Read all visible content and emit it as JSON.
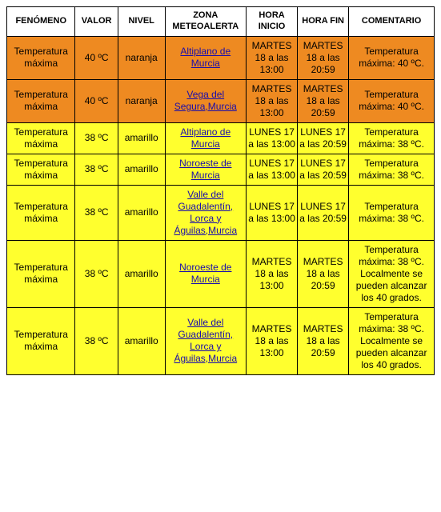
{
  "table": {
    "columns": [
      "FENÓMENO",
      "VALOR",
      "NIVEL",
      "ZONA METEOALERTA",
      "HORA INICIO",
      "HORA FIN",
      "COMENTARIO"
    ],
    "col_widths_pct": [
      16,
      10,
      11,
      19,
      12,
      12,
      20
    ],
    "header_bg": "#ffffff",
    "header_fontsize": 11,
    "cell_fontsize": 12,
    "border_color": "#000000",
    "link_color": "#1a0dab",
    "level_colors": {
      "naranja": "#ee8a21",
      "amarillo": "#ffff2e"
    },
    "rows": [
      {
        "fenomeno": "Temperatura máxima",
        "valor": "40 ºC",
        "nivel": "naranja",
        "zona": "Altiplano de Murcia",
        "inicio": "MARTES 18 a las 13:00",
        "fin": "MARTES 18 a las 20:59",
        "comentario": "Temperatura máxima: 40 ºC."
      },
      {
        "fenomeno": "Temperatura máxima",
        "valor": "40 ºC",
        "nivel": "naranja",
        "zona": "Vega del Segura,Murcia",
        "inicio": "MARTES 18 a las 13:00",
        "fin": "MARTES 18 a las 20:59",
        "comentario": "Temperatura máxima: 40 ºC."
      },
      {
        "fenomeno": "Temperatura máxima",
        "valor": "38 ºC",
        "nivel": "amarillo",
        "zona": "Altiplano de Murcia",
        "inicio": "LUNES 17 a las 13:00",
        "fin": "LUNES 17 a las 20:59",
        "comentario": "Temperatura máxima: 38 ºC."
      },
      {
        "fenomeno": "Temperatura máxima",
        "valor": "38 ºC",
        "nivel": "amarillo",
        "zona": "Noroeste de Murcia",
        "inicio": "LUNES 17 a las 13:00",
        "fin": "LUNES 17 a las 20:59",
        "comentario": "Temperatura máxima: 38 ºC."
      },
      {
        "fenomeno": "Temperatura máxima",
        "valor": "38 ºC",
        "nivel": "amarillo",
        "zona": "Valle del Guadalentín, Lorca y Águilas,Murcia",
        "inicio": "LUNES 17 a las 13:00",
        "fin": "LUNES 17 a las 20:59",
        "comentario": "Temperatura máxima: 38 ºC."
      },
      {
        "fenomeno": "Temperatura máxima",
        "valor": "38 ºC",
        "nivel": "amarillo",
        "zona": "Noroeste de Murcia",
        "inicio": "MARTES 18 a las 13:00",
        "fin": "MARTES 18 a las 20:59",
        "comentario": "Temperatura máxima: 38 ºC. Localmente se pueden alcanzar los 40 grados."
      },
      {
        "fenomeno": "Temperatura máxima",
        "valor": "38 ºC",
        "nivel": "amarillo",
        "zona": "Valle del Guadalentín, Lorca y Águilas,Murcia",
        "inicio": "MARTES 18 a las 13:00",
        "fin": "MARTES 18 a las 20:59",
        "comentario": "Temperatura máxima: 38 ºC. Localmente se pueden alcanzar los 40 grados."
      }
    ]
  }
}
